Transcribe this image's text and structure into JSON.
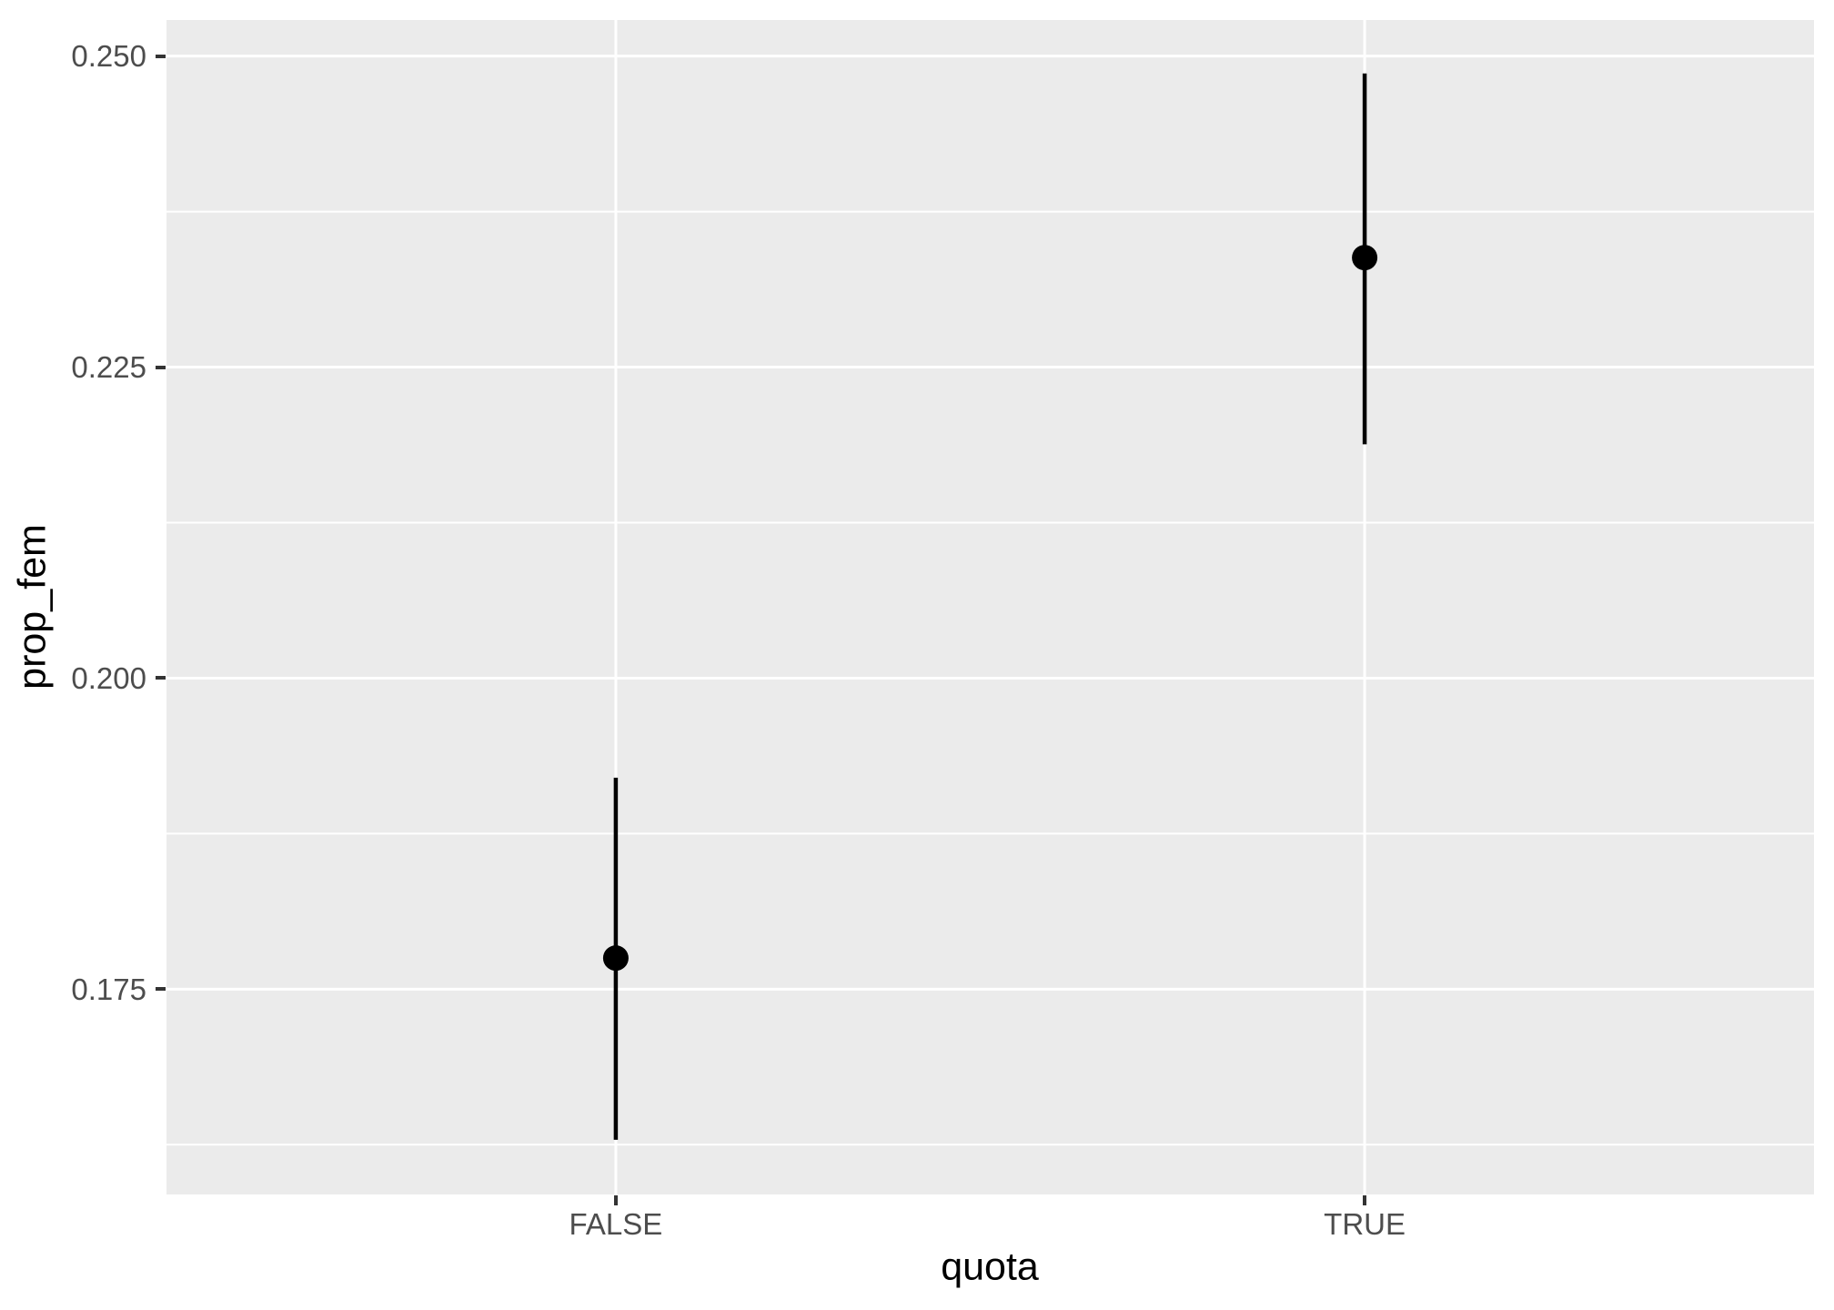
{
  "chart_data": {
    "type": "pointrange",
    "title": "",
    "xlabel": "quota",
    "ylabel": "prop_fem",
    "categories": [
      "FALSE",
      "TRUE"
    ],
    "series": [
      {
        "name": "prop_fem",
        "points": [
          {
            "x": "FALSE",
            "y": 0.1775,
            "ymin": 0.1629,
            "ymax": 0.192
          },
          {
            "x": "TRUE",
            "y": 0.2338,
            "ymin": 0.2188,
            "ymax": 0.2486
          }
        ]
      }
    ],
    "y_ticks": [
      0.175,
      0.2,
      0.225,
      0.25
    ],
    "y_tick_labels": [
      "0.175",
      "0.200",
      "0.225",
      "0.250"
    ],
    "y_minor_ticks": [
      0.1625,
      0.1875,
      0.2125,
      0.2375
    ],
    "ylim": [
      0.1585,
      0.2529
    ],
    "grid": true,
    "legend_position": "none",
    "theme": {
      "panel_background": "#EBEBEB",
      "grid_color": "#FFFFFF",
      "point_color": "#000000",
      "axis_text_color": "#4D4D4D",
      "axis_title_color": "#000000",
      "tick_mark_color": "#333333"
    }
  }
}
